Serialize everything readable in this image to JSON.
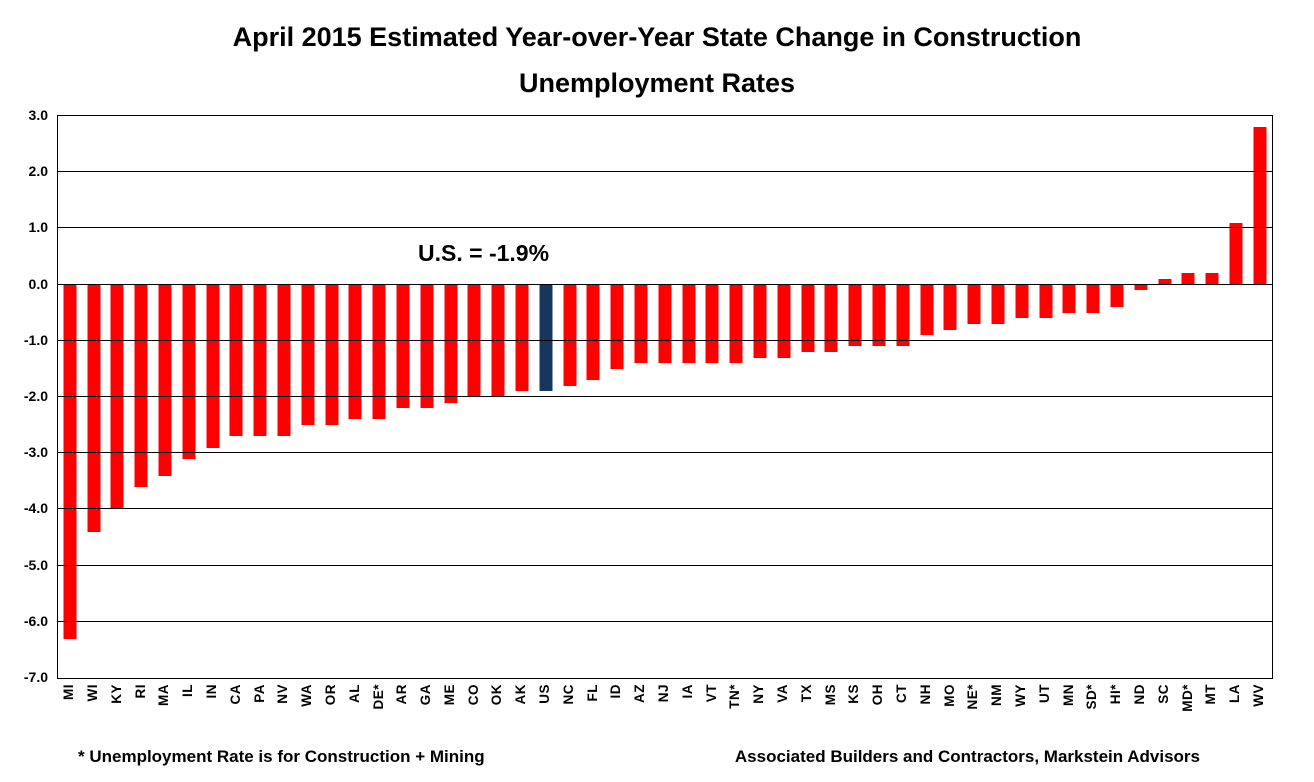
{
  "title": {
    "line1": "April 2015 Estimated Year-over-Year State Change in Construction",
    "line2": "Unemployment Rates"
  },
  "annotation": "U.S. = -1.9%",
  "footnote_left": "* Unemployment Rate is for Construction + Mining",
  "footnote_right": "Associated Builders and Contractors, Markstein Advisors",
  "colors": {
    "bar": "#FF0000",
    "us_bar": "#17365D",
    "grid": "#000000",
    "text": "#000000",
    "background": "#FFFFFF"
  },
  "chart_data": {
    "type": "bar",
    "title": "April 2015 Estimated Year-over-Year State Change in Construction Unemployment Rates",
    "xlabel": "",
    "ylabel": "",
    "ylim": [
      -7.0,
      3.0
    ],
    "ytick_labels": [
      "3.0",
      "2.0",
      "1.0",
      "0.0",
      "-1.0",
      "-2.0",
      "-3.0",
      "-4.0",
      "-5.0",
      "-6.0",
      "-7.0"
    ],
    "grid": true,
    "legend": false,
    "annotation": "U.S. = -1.9%",
    "highlight_category": "US",
    "categories": [
      "MI",
      "WI",
      "KY",
      "RI",
      "MA",
      "IL",
      "IN",
      "CA",
      "PA",
      "NV",
      "WA",
      "OR",
      "AL",
      "DE*",
      "AR",
      "GA",
      "ME",
      "CO",
      "OK",
      "AK",
      "US",
      "NC",
      "FL",
      "ID",
      "AZ",
      "NJ",
      "IA",
      "VT",
      "TN*",
      "NY",
      "VA",
      "TX",
      "MS",
      "KS",
      "OH",
      "CT",
      "NH",
      "MO",
      "NE*",
      "NM",
      "WY",
      "UT",
      "MN",
      "SD*",
      "HI*",
      "ND",
      "SC",
      "MD*",
      "MT",
      "LA",
      "WV"
    ],
    "values": [
      -6.3,
      -4.4,
      -4.0,
      -3.6,
      -3.4,
      -3.1,
      -2.9,
      -2.7,
      -2.7,
      -2.7,
      -2.5,
      -2.5,
      -2.4,
      -2.4,
      -2.2,
      -2.2,
      -2.1,
      -2.0,
      -2.0,
      -1.9,
      -1.9,
      -1.8,
      -1.7,
      -1.5,
      -1.4,
      -1.4,
      -1.4,
      -1.4,
      -1.4,
      -1.3,
      -1.3,
      -1.2,
      -1.2,
      -1.1,
      -1.1,
      -1.1,
      -0.9,
      -0.8,
      -0.7,
      -0.7,
      -0.6,
      -0.6,
      -0.5,
      -0.5,
      -0.4,
      -0.1,
      0.1,
      0.2,
      0.2,
      1.1,
      2.8
    ]
  }
}
